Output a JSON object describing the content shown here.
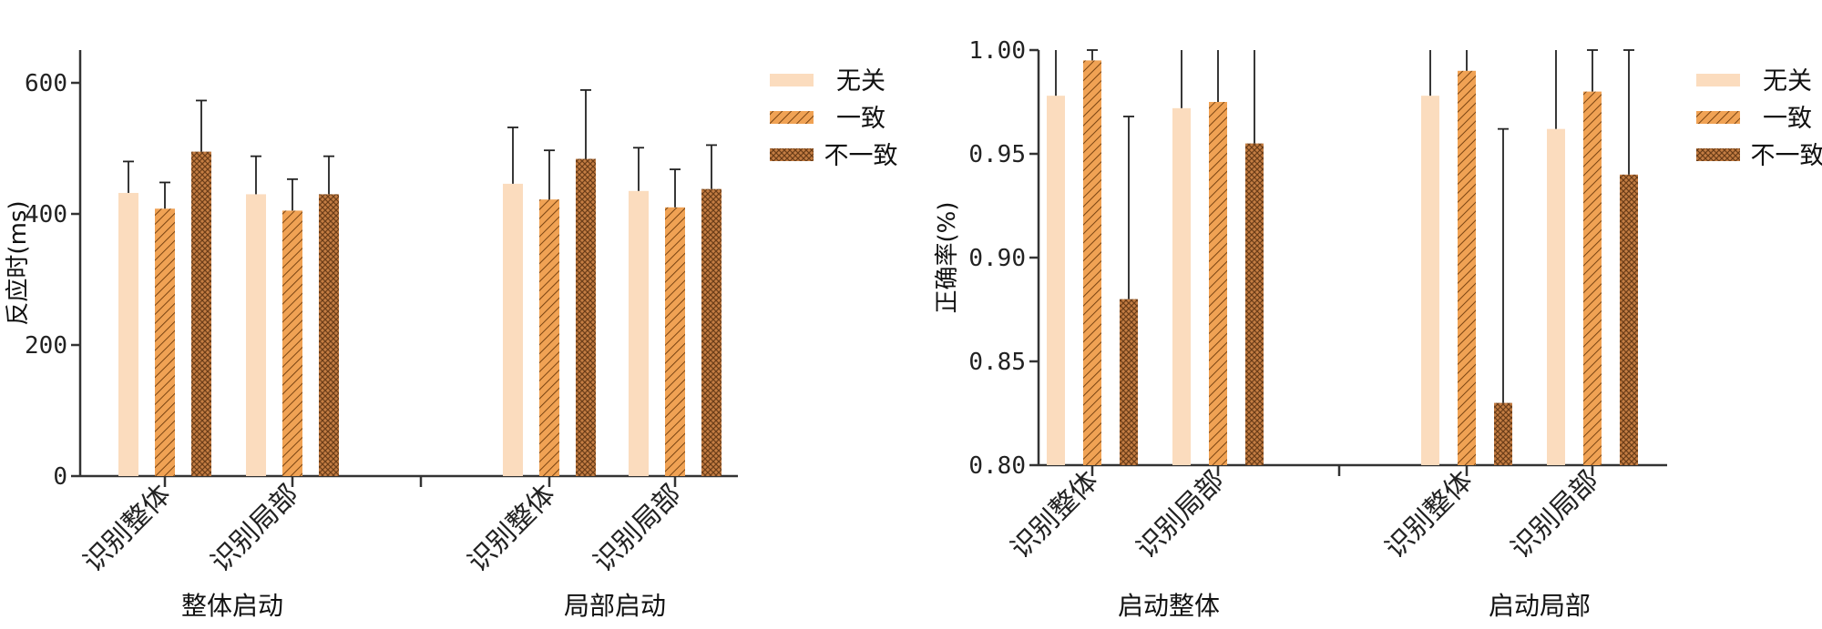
{
  "colors": {
    "unrelated": "#fbdcbe",
    "consistent": "#f0a254",
    "inconsistent": "#c47d43",
    "axis": "#333333",
    "error_bar": "#222222"
  },
  "chart_data": [
    {
      "type": "bar",
      "ylabel": "反应时(ms)",
      "ylim": [
        0,
        650
      ],
      "yticks": [
        "0",
        "200",
        "400",
        "600"
      ],
      "legend": [
        "无关",
        "一致",
        "不一致"
      ],
      "legend_position": "right",
      "groups": [
        {
          "label": "整体启动",
          "categories": [
            {
              "label": "识别整体",
              "values": [
                432,
                408,
                495
              ],
              "errors": [
                48,
                40,
                78
              ]
            },
            {
              "label": "识别局部",
              "values": [
                430,
                405,
                430
              ],
              "errors": [
                58,
                48,
                58
              ]
            }
          ]
        },
        {
          "label": "局部启动",
          "categories": [
            {
              "label": "识别整体",
              "values": [
                446,
                422,
                484
              ],
              "errors": [
                86,
                75,
                105
              ]
            },
            {
              "label": "识别局部",
              "values": [
                435,
                410,
                438
              ],
              "errors": [
                66,
                58,
                67
              ]
            }
          ]
        }
      ]
    },
    {
      "type": "bar",
      "ylabel": "正确率(%)",
      "ylim": [
        0.8,
        1.0
      ],
      "yticks": [
        "0.80",
        "0.85",
        "0.90",
        "0.95",
        "1.00"
      ],
      "legend": [
        "无关",
        "一致",
        "不一致"
      ],
      "legend_position": "right",
      "groups": [
        {
          "label": "启动整体",
          "categories": [
            {
              "label": "识别整体",
              "values": [
                0.978,
                0.995,
                0.88
              ],
              "errors": [
                0.03,
                0.005,
                0.088
              ]
            },
            {
              "label": "识别局部",
              "values": [
                0.972,
                0.975,
                0.955
              ],
              "errors": [
                0.03,
                0.03,
                0.05
              ]
            }
          ]
        },
        {
          "label": "启动局部",
          "categories": [
            {
              "label": "识别整体",
              "values": [
                0.978,
                0.99,
                0.83
              ],
              "errors": [
                0.03,
                0.012,
                0.132
              ]
            },
            {
              "label": "识别局部",
              "values": [
                0.962,
                0.98,
                0.94
              ],
              "errors": [
                0.04,
                0.02,
                0.06
              ]
            }
          ]
        }
      ]
    }
  ]
}
